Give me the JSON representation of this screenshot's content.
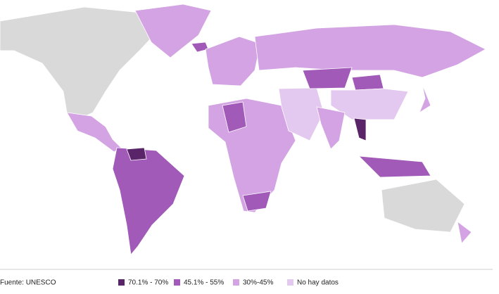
{
  "source": "Fuente: UNESCO",
  "legend": [
    {
      "label": "70.1% - 70%",
      "color": "#5a2468"
    },
    {
      "label": "45.1% - 55%",
      "color": "#a25ab8"
    },
    {
      "label": "30%-45%",
      "color": "#d3a3e3"
    },
    {
      "label": "No hay datos",
      "color": "#e3c8ef"
    }
  ]
}
